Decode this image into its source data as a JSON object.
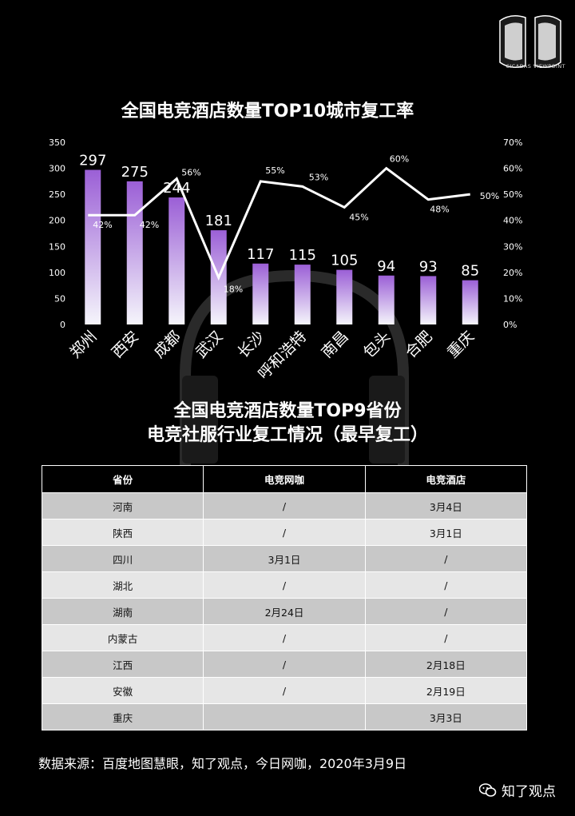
{
  "brand": {
    "name": "CICADAS VIEWPOINT"
  },
  "colors": {
    "bar_top": "#9b5fd6",
    "bar_bottom": "#f5f5fb",
    "line": "#ffffff",
    "background": "#000000"
  },
  "chart_data": {
    "type": "bar",
    "title": "全国电竞酒店数量TOP10城市复工率",
    "categories": [
      "郑州",
      "西安",
      "成都",
      "武汉",
      "长沙",
      "呼和浩特",
      "南昌",
      "包头",
      "合肥",
      "重庆"
    ],
    "series": [
      {
        "type": "bar",
        "axis": "left",
        "values": [
          297,
          275,
          244,
          181,
          117,
          115,
          105,
          94,
          93,
          85
        ]
      },
      {
        "type": "line",
        "axis": "right",
        "values": [
          42,
          42,
          56,
          18,
          55,
          53,
          45,
          60,
          48,
          50
        ],
        "labels": [
          "42%",
          "42%",
          "56%",
          "18%",
          "55%",
          "53%",
          "45%",
          "60%",
          "48%",
          "50%"
        ]
      }
    ],
    "ylim_left": [
      0,
      350
    ],
    "yticks_left": [
      "0",
      "50",
      "100",
      "150",
      "200",
      "250",
      "300",
      "350"
    ],
    "ylim_right": [
      0,
      70
    ],
    "yticks_right": [
      "0%",
      "10%",
      "20%",
      "30%",
      "40%",
      "50%",
      "60%",
      "70%"
    ],
    "grid": false
  },
  "table": {
    "title_line1": "全国电竞酒店数量TOP9省份",
    "title_line2": "电竞社服行业复工情况（最早复工）",
    "headers": [
      "省份",
      "电竞网咖",
      "电竞酒店"
    ],
    "rows": [
      [
        "河南",
        "/",
        "3月4日"
      ],
      [
        "陕西",
        "/",
        "3月1日"
      ],
      [
        "四川",
        "3月1日",
        "/"
      ],
      [
        "湖北",
        "/",
        "/"
      ],
      [
        "湖南",
        "2月24日",
        "/"
      ],
      [
        "内蒙古",
        "/",
        "/"
      ],
      [
        "江西",
        "/",
        "2月18日"
      ],
      [
        "安徽",
        "/",
        "2月19日"
      ],
      [
        "重庆",
        "",
        "3月3日"
      ]
    ]
  },
  "footer": {
    "source": "数据来源：百度地图慧眼，知了观点，今日网咖，2020年3月9日",
    "wechat_label": "知了观点",
    "wechat_icon": "wechat-icon"
  }
}
